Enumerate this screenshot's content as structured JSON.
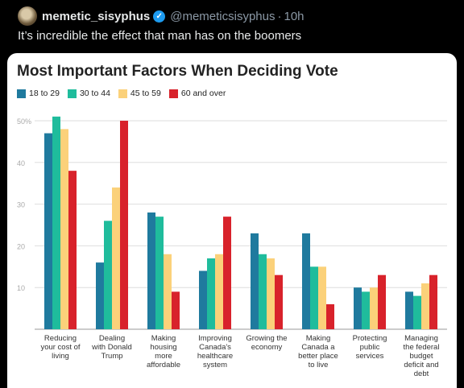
{
  "tweet": {
    "display_name": "memetic_sisyphus",
    "verified_glyph": "✓",
    "handle": "@memeticsisyphus",
    "separator": "·",
    "time": "10h",
    "text": "It’s incredible the effect that man has on the boomers"
  },
  "chart_data": {
    "type": "bar",
    "title": "Most Important Factors When Deciding Vote",
    "categories": [
      [
        "Reducing",
        "your cost of",
        "living"
      ],
      [
        "Dealing",
        "with Donald",
        "Trump"
      ],
      [
        "Making",
        "housing",
        "more",
        "affordable"
      ],
      [
        "Improving",
        "Canada's",
        "healthcare",
        "system"
      ],
      [
        "Growing the",
        "economy"
      ],
      [
        "Making",
        "Canada a",
        "better place",
        "to live"
      ],
      [
        "Protecting",
        "public",
        "services"
      ],
      [
        "Managing",
        "the federal",
        "budget",
        "deficit and",
        "debt"
      ]
    ],
    "series": [
      {
        "name": "18 to 29",
        "color": "#1f7a9e",
        "values": [
          47,
          16,
          28,
          14,
          23,
          23,
          10,
          9
        ]
      },
      {
        "name": "30 to 44",
        "color": "#1fbc9c",
        "values": [
          51,
          26,
          27,
          17,
          18,
          15,
          9,
          8
        ]
      },
      {
        "name": "45 to 59",
        "color": "#fbd17a",
        "values": [
          48,
          34,
          18,
          18,
          17,
          15,
          10,
          11
        ]
      },
      {
        "name": "60 and over",
        "color": "#d8222b",
        "values": [
          38,
          50,
          9,
          27,
          13,
          6,
          13,
          13
        ]
      }
    ],
    "y_ticks": [
      "10",
      "20",
      "30",
      "40",
      "50%"
    ],
    "ylim": [
      0,
      50
    ],
    "grid": true,
    "legend_position": "top-left"
  }
}
